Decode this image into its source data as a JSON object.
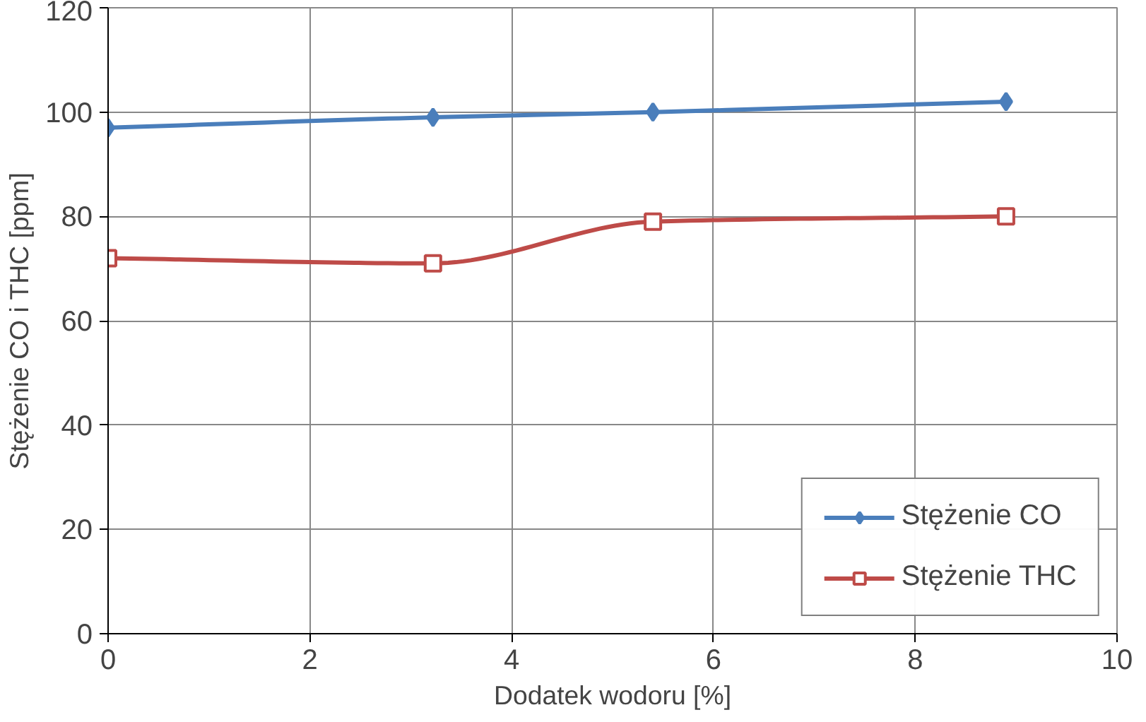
{
  "chart_data": {
    "type": "line",
    "xlabel": "Dodatek wodoru [%]",
    "ylabel": "Stężenie CO i THC [ppm]",
    "x": [
      0,
      3.22,
      5.4,
      8.9
    ],
    "series": [
      {
        "name": "Stężenie CO",
        "color": "#4a7ebb",
        "marker": "diamond",
        "values": [
          97,
          99,
          100,
          102
        ]
      },
      {
        "name": "Stężenie THC",
        "color": "#be4b48",
        "marker": "square",
        "values": [
          72,
          71,
          79,
          80
        ]
      }
    ],
    "xlim": [
      0,
      10
    ],
    "xticks": [
      0,
      2,
      4,
      6,
      8,
      10
    ],
    "ylim": [
      0,
      120
    ],
    "yticks": [
      0,
      20,
      40,
      60,
      80,
      100,
      120
    ],
    "grid": true,
    "legend": "bottom right",
    "line_style": "solid"
  }
}
